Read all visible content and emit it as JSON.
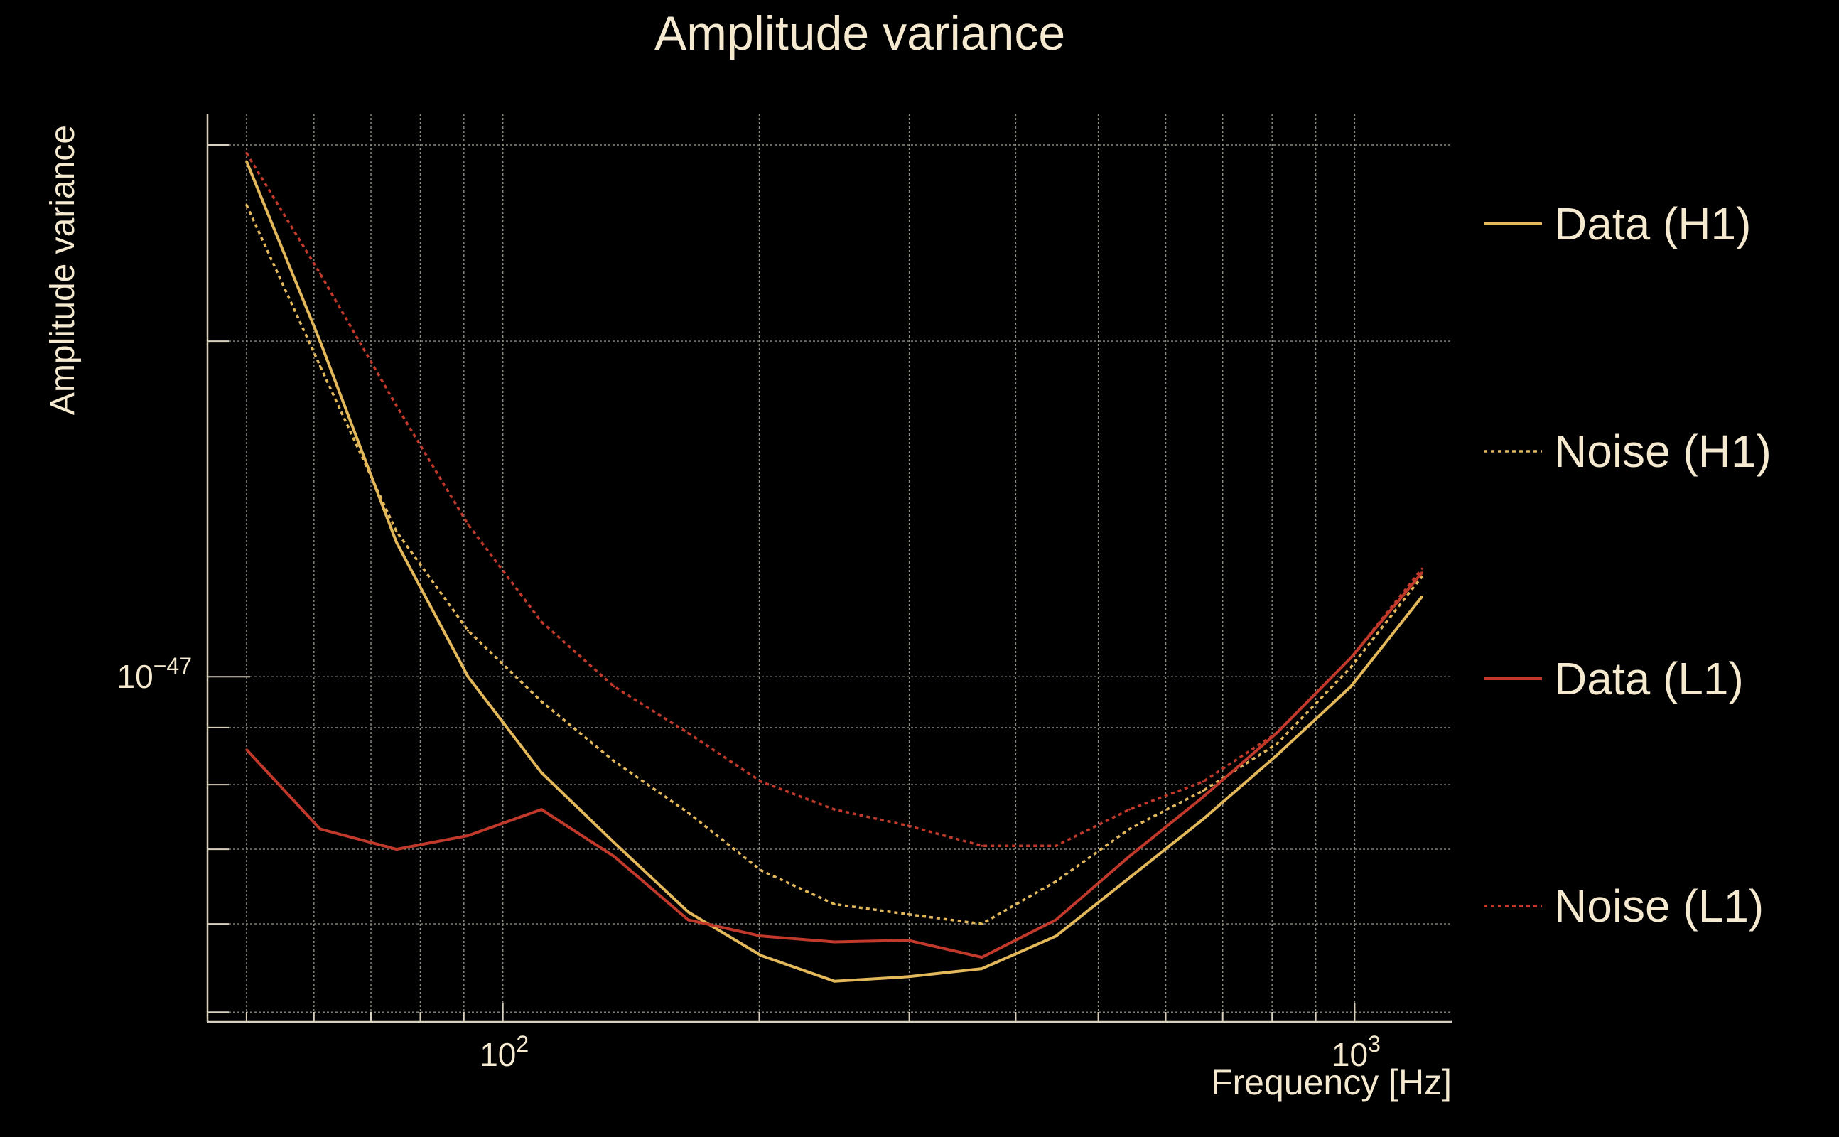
{
  "chart_data": {
    "type": "line",
    "title": "Amplitude variance",
    "xlabel": "Frequency [Hz]",
    "ylabel": "Amplitude variance",
    "xscale": "log",
    "yscale": "log",
    "xlim": [
      45,
      1300
    ],
    "ylim": [
      4.9e-48,
      3.2e-47
    ],
    "grid": true,
    "legend_position": "right",
    "x_ticks": [
      {
        "value": 100,
        "base": "10",
        "exp": "2"
      },
      {
        "value": 1000,
        "base": "10",
        "exp": "3"
      }
    ],
    "y_ticks": [
      {
        "value": 1e-47,
        "base": "10",
        "exp": "−47"
      }
    ],
    "x": [
      50,
      61,
      75,
      91,
      111,
      135,
      165,
      201,
      245,
      299,
      365,
      446,
      544,
      664,
      810,
      990,
      1200
    ],
    "series": [
      {
        "name": "Data (H1)",
        "color": "#e3b85b",
        "dash": "solid",
        "values": [
          2.9e-47,
          2e-47,
          1.32e-47,
          1e-47,
          8.2e-48,
          7.1e-48,
          6.15e-48,
          5.62e-48,
          5.33e-48,
          5.38e-48,
          5.47e-48,
          5.85e-48,
          6.6e-48,
          7.45e-48,
          8.5e-48,
          9.8e-48,
          1.18e-47
        ]
      },
      {
        "name": "Noise (H1)",
        "color": "#e3b85b",
        "dash": "dotted",
        "values": [
          2.65e-47,
          1.9e-47,
          1.35e-47,
          1.1e-47,
          9.5e-48,
          8.4e-48,
          7.55e-48,
          6.7e-48,
          6.25e-48,
          6.12e-48,
          6e-48,
          6.55e-48,
          7.3e-48,
          7.9e-48,
          8.7e-48,
          1.02e-47,
          1.23e-47
        ]
      },
      {
        "name": "Data (L1)",
        "color": "#c0392b",
        "dash": "solid",
        "values": [
          8.6e-48,
          7.3e-48,
          7e-48,
          7.2e-48,
          7.6e-48,
          6.9e-48,
          6.05e-48,
          5.85e-48,
          5.78e-48,
          5.8e-48,
          5.6e-48,
          6.05e-48,
          6.9e-48,
          7.8e-48,
          8.9e-48,
          1.04e-47,
          1.24e-47
        ]
      },
      {
        "name": "Noise (L1)",
        "color": "#c0392b",
        "dash": "dotted",
        "values": [
          2.95e-47,
          2.3e-47,
          1.75e-47,
          1.37e-47,
          1.12e-47,
          9.8e-48,
          8.9e-48,
          8.05e-48,
          7.6e-48,
          7.35e-48,
          7.05e-48,
          7.05e-48,
          7.6e-48,
          8.05e-48,
          8.9e-48,
          1.04e-47,
          1.25e-47
        ]
      }
    ]
  }
}
